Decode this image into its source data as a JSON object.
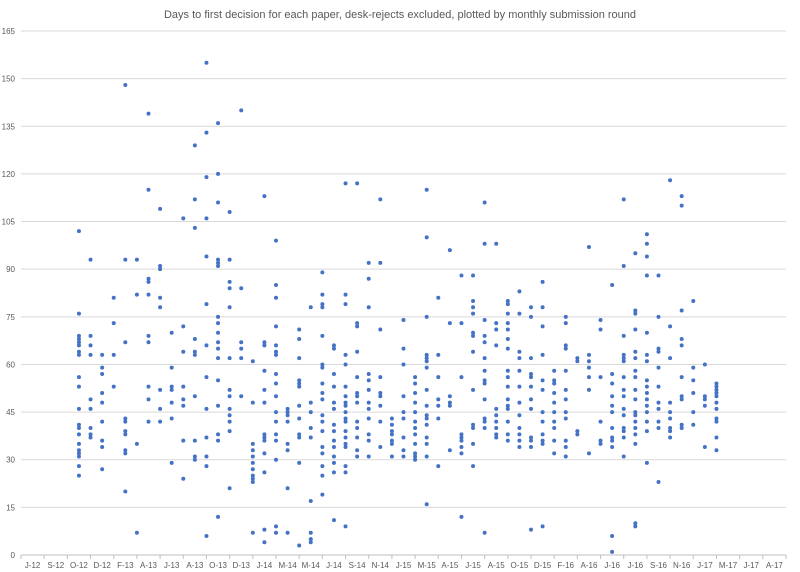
{
  "chart_data": {
    "type": "scatter",
    "title": "Days to first decision for each paper, desk-rejects excluded, plotted by monthly submission round",
    "xlabel": "",
    "ylabel": "",
    "ylim": [
      0,
      165
    ],
    "yticks": [
      0,
      15,
      30,
      45,
      60,
      75,
      90,
      105,
      120,
      135,
      150,
      165
    ],
    "grid": "horizontal",
    "legend": "none",
    "series_color": "#4472c4",
    "x_categories": [
      "J-12",
      "S-12",
      "O-12",
      "D-12",
      "F-13",
      "A-13",
      "J-13",
      "A-13",
      "O-13",
      "D-13",
      "J-14",
      "M-14",
      "M-14",
      "J-14",
      "S-14",
      "N-14",
      "J-15",
      "M-15",
      "A-15",
      "J-15",
      "A-15",
      "O-15",
      "D-15",
      "F-16",
      "A-16",
      "J-16",
      "J-16",
      "S-16",
      "N-16",
      "J-17",
      "M-17",
      "J-17",
      "A-17"
    ],
    "points": [
      {
        "x": 2,
        "ys": [
          102,
          76,
          69,
          68,
          67,
          66,
          64,
          63,
          56,
          53,
          46,
          41,
          40,
          38,
          35,
          33,
          32,
          31,
          28,
          25
        ]
      },
      {
        "x": 2.5,
        "ys": [
          93,
          69,
          66,
          63,
          49,
          46,
          40,
          38,
          37
        ]
      },
      {
        "x": 3,
        "ys": [
          63,
          59,
          57,
          51,
          48,
          42,
          36,
          34,
          27
        ]
      },
      {
        "x": 3.5,
        "ys": [
          81,
          73,
          63,
          53
        ]
      },
      {
        "x": 4,
        "ys": [
          148,
          93,
          67,
          43,
          42,
          39,
          38,
          33,
          32,
          20
        ]
      },
      {
        "x": 4.5,
        "ys": [
          93,
          82,
          35,
          7
        ]
      },
      {
        "x": 5,
        "ys": [
          139,
          115,
          87,
          86,
          82,
          69,
          67,
          53,
          49,
          42
        ]
      },
      {
        "x": 5.5,
        "ys": [
          109,
          91,
          90,
          81,
          78,
          52,
          46,
          42
        ]
      },
      {
        "x": 6,
        "ys": [
          70,
          59,
          53,
          52,
          48,
          43,
          29
        ]
      },
      {
        "x": 6.5,
        "ys": [
          106,
          72,
          64,
          53,
          49,
          47,
          36,
          24
        ]
      },
      {
        "x": 7,
        "ys": [
          129,
          112,
          103,
          68,
          64,
          63,
          50,
          36,
          31,
          30
        ]
      },
      {
        "x": 7.5,
        "ys": [
          155,
          133,
          119,
          106,
          94,
          79,
          66,
          56,
          46,
          37,
          31,
          28,
          6
        ]
      },
      {
        "x": 8,
        "ys": [
          136,
          120,
          111,
          93,
          92,
          91,
          75,
          73,
          70,
          67,
          65,
          62,
          55,
          47,
          38,
          36,
          12
        ]
      },
      {
        "x": 8.5,
        "ys": [
          108,
          93,
          86,
          84,
          78,
          62,
          52,
          50,
          46,
          44,
          42,
          39,
          21
        ]
      },
      {
        "x": 9,
        "ys": [
          140,
          84,
          67,
          65,
          62,
          50
        ]
      },
      {
        "x": 9.5,
        "ys": [
          61,
          48,
          35,
          33,
          31,
          29,
          27,
          25,
          24,
          23,
          7
        ]
      },
      {
        "x": 10,
        "ys": [
          113,
          67,
          66,
          58,
          52,
          48,
          38,
          37,
          36,
          32,
          26,
          8,
          4
        ]
      },
      {
        "x": 10.5,
        "ys": [
          99,
          85,
          81,
          72,
          66,
          64,
          63,
          57,
          54,
          50,
          45,
          42,
          38,
          36,
          30,
          9,
          7
        ]
      },
      {
        "x": 11,
        "ys": [
          46,
          45,
          44,
          42,
          35,
          33,
          21,
          7
        ]
      },
      {
        "x": 11.5,
        "ys": [
          71,
          68,
          62,
          55,
          54,
          53,
          47,
          43,
          38,
          37,
          29,
          3
        ]
      },
      {
        "x": 12,
        "ys": [
          78,
          48,
          45,
          40,
          37,
          17,
          7,
          5,
          4
        ]
      },
      {
        "x": 12.5,
        "ys": [
          89,
          82,
          79,
          78,
          69,
          60,
          59,
          54,
          51,
          49,
          44,
          42,
          39,
          34,
          32,
          28,
          25,
          19
        ]
      },
      {
        "x": 13,
        "ys": [
          66,
          65,
          57,
          53,
          48,
          46,
          41,
          39,
          36,
          34,
          31,
          29,
          26,
          11
        ]
      },
      {
        "x": 13.5,
        "ys": [
          117,
          82,
          79,
          63,
          60,
          53,
          50,
          48,
          47,
          45,
          43,
          42,
          39,
          37,
          35,
          34,
          28,
          26,
          9
        ]
      },
      {
        "x": 14,
        "ys": [
          117,
          73,
          72,
          64,
          56,
          51,
          50,
          48,
          42,
          40,
          37,
          33,
          31
        ]
      },
      {
        "x": 14.5,
        "ys": [
          92,
          87,
          78,
          57,
          55,
          52,
          48,
          46,
          43,
          38,
          36,
          31
        ]
      },
      {
        "x": 15,
        "ys": [
          112,
          92,
          71,
          56,
          51,
          50,
          47,
          42,
          34
        ]
      },
      {
        "x": 15.5,
        "ys": [
          43,
          41,
          39,
          38,
          36,
          35,
          31
        ]
      },
      {
        "x": 16,
        "ys": [
          74,
          65,
          60,
          50,
          45,
          43,
          37,
          33,
          31
        ]
      },
      {
        "x": 16.5,
        "ys": [
          56,
          54,
          51,
          48,
          45,
          42,
          40,
          38,
          35,
          32,
          31,
          30
        ]
      },
      {
        "x": 17,
        "ys": [
          115,
          100,
          75,
          63,
          62,
          61,
          59,
          52,
          47,
          44,
          43,
          41,
          37,
          35,
          31,
          16
        ]
      },
      {
        "x": 17.5,
        "ys": [
          81,
          63,
          56,
          49,
          47,
          43,
          28
        ]
      },
      {
        "x": 18,
        "ys": [
          96,
          73,
          50,
          48,
          47,
          33
        ]
      },
      {
        "x": 18.5,
        "ys": [
          88,
          73,
          56,
          38,
          37,
          36,
          34,
          32,
          12
        ]
      },
      {
        "x": 19,
        "ys": [
          88,
          80,
          78,
          76,
          70,
          69,
          64,
          52,
          41,
          40,
          35,
          28
        ]
      },
      {
        "x": 19.5,
        "ys": [
          111,
          98,
          74,
          69,
          67,
          62,
          58,
          55,
          54,
          49,
          43,
          42,
          40,
          7
        ]
      },
      {
        "x": 20,
        "ys": [
          98,
          73,
          71,
          66,
          46,
          44,
          42,
          40,
          38,
          37
        ]
      },
      {
        "x": 20.5,
        "ys": [
          80,
          79,
          76,
          73,
          71,
          68,
          65,
          58,
          56,
          53,
          49,
          47,
          46,
          42,
          38,
          36
        ]
      },
      {
        "x": 21,
        "ys": [
          83,
          76,
          64,
          62,
          58,
          53,
          48,
          44,
          40,
          38,
          36,
          34
        ]
      },
      {
        "x": 21.5,
        "ys": [
          78,
          75,
          62,
          57,
          56,
          53,
          49,
          46,
          37,
          36,
          34,
          8
        ]
      },
      {
        "x": 22,
        "ys": [
          86,
          78,
          72,
          63,
          55,
          52,
          45,
          42,
          38,
          36,
          35,
          9
        ]
      },
      {
        "x": 22.5,
        "ys": [
          58,
          55,
          54,
          51,
          48,
          45,
          42,
          40,
          36,
          32
        ]
      },
      {
        "x": 23,
        "ys": [
          75,
          73,
          66,
          65,
          58,
          52,
          49,
          45,
          43,
          36,
          34,
          31
        ]
      },
      {
        "x": 23.5,
        "ys": [
          62,
          61,
          39,
          38
        ]
      },
      {
        "x": 24,
        "ys": [
          97,
          63,
          61,
          59,
          56,
          52,
          32
        ]
      },
      {
        "x": 24.5,
        "ys": [
          74,
          71,
          56,
          42,
          36,
          35
        ]
      },
      {
        "x": 25,
        "ys": [
          85,
          57,
          54,
          50,
          47,
          45,
          40,
          37,
          36,
          34,
          6,
          1
        ]
      },
      {
        "x": 25.5,
        "ys": [
          112,
          91,
          69,
          63,
          62,
          61,
          56,
          52,
          50,
          46,
          44,
          40,
          39,
          37,
          31
        ]
      },
      {
        "x": 26,
        "ys": [
          95,
          77,
          76,
          71,
          64,
          62,
          58,
          56,
          52,
          49,
          45,
          44,
          42,
          40,
          38,
          35,
          10,
          9
        ]
      },
      {
        "x": 26.5,
        "ys": [
          101,
          98,
          94,
          88,
          70,
          63,
          61,
          55,
          53,
          51,
          49,
          47,
          45,
          42,
          39,
          29
        ]
      },
      {
        "x": 27,
        "ys": [
          88,
          75,
          65,
          64,
          59,
          53,
          48,
          46,
          42,
          40,
          23
        ]
      },
      {
        "x": 27.5,
        "ys": [
          118,
          72,
          62,
          48,
          45,
          43,
          40,
          39,
          37
        ]
      },
      {
        "x": 28,
        "ys": [
          113,
          110,
          77,
          68,
          66,
          56,
          50,
          49,
          41,
          40
        ]
      },
      {
        "x": 28.5,
        "ys": [
          80,
          59,
          55,
          51,
          45,
          41
        ]
      },
      {
        "x": 29,
        "ys": [
          60,
          50,
          49,
          47,
          34
        ]
      },
      {
        "x": 29.5,
        "ys": [
          54,
          53,
          52,
          51,
          50,
          48,
          46,
          43,
          42,
          37,
          33
        ]
      }
    ]
  }
}
